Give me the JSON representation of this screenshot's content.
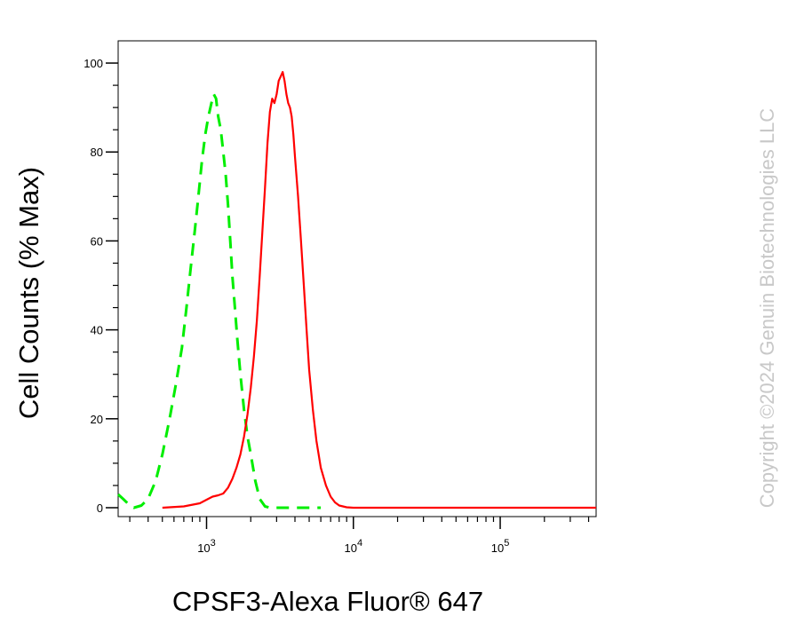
{
  "chart_data": {
    "type": "line",
    "title": "",
    "xlabel": "CPSF3-Alexa Fluor® 647",
    "ylabel": "Cell Counts (% Max)",
    "x_scale": "log",
    "xlim": [
      250,
      450000
    ],
    "ylim": [
      -2,
      105
    ],
    "y_ticks": [
      0,
      20,
      40,
      60,
      80,
      100
    ],
    "y_tick_labels": [
      "0",
      "20",
      "40",
      "60",
      "80",
      "100"
    ],
    "x_ticks": [
      1000,
      10000,
      100000
    ],
    "x_tick_labels": [
      {
        "base": "10",
        "exp": "3"
      },
      {
        "base": "10",
        "exp": "4"
      },
      {
        "base": "10",
        "exp": "5"
      }
    ],
    "grid": false,
    "series": [
      {
        "color": "#00ee00",
        "style": "dashed",
        "x": [
          250,
          270,
          290,
          320,
          360,
          400,
          450,
          500,
          560,
          620,
          680,
          730,
          780,
          830,
          880,
          930,
          980,
          1030,
          1080,
          1120,
          1160,
          1200,
          1250,
          1300,
          1350,
          1400,
          1450,
          1500,
          1560,
          1620,
          1700,
          1800,
          1900,
          2000,
          2150,
          2300,
          2500,
          2700,
          3000,
          3500,
          4500,
          6000
        ],
        "y": [
          3,
          2,
          1,
          0,
          0.5,
          2,
          6,
          12,
          20,
          28,
          36,
          45,
          54,
          62,
          70,
          78,
          84,
          88,
          91,
          93,
          92,
          88,
          85,
          80,
          75,
          68,
          60,
          52,
          45,
          38,
          30,
          22,
          16,
          12,
          6,
          2,
          0.3,
          0,
          0,
          0,
          0,
          0
        ]
      },
      {
        "color": "#ff0000",
        "style": "solid",
        "x": [
          500,
          700,
          900,
          1000,
          1100,
          1200,
          1300,
          1400,
          1500,
          1600,
          1700,
          1800,
          1900,
          2000,
          2100,
          2200,
          2300,
          2400,
          2500,
          2600,
          2700,
          2800,
          2900,
          3000,
          3100,
          3200,
          3300,
          3400,
          3500,
          3600,
          3700,
          3800,
          3900,
          4000,
          4200,
          4400,
          4600,
          4800,
          5000,
          5300,
          5600,
          6000,
          6500,
          7000,
          7500,
          8000,
          9000,
          10000,
          20000,
          50000,
          100000,
          450000
        ],
        "y": [
          0,
          0.3,
          1,
          1.8,
          2.5,
          2.8,
          3.2,
          4.5,
          6.5,
          9,
          12,
          16,
          21,
          27,
          34,
          42,
          52,
          62,
          72,
          82,
          89,
          92,
          91,
          93,
          96,
          97,
          98,
          96,
          93,
          91,
          90,
          88,
          84,
          79,
          70,
          60,
          50,
          40,
          31,
          22,
          15,
          9,
          5,
          2.5,
          1.2,
          0.5,
          0.1,
          0,
          0,
          0,
          0,
          0
        ]
      }
    ]
  },
  "watermark": "Copyright ©2024 Genuin Biotechnologies LLC"
}
